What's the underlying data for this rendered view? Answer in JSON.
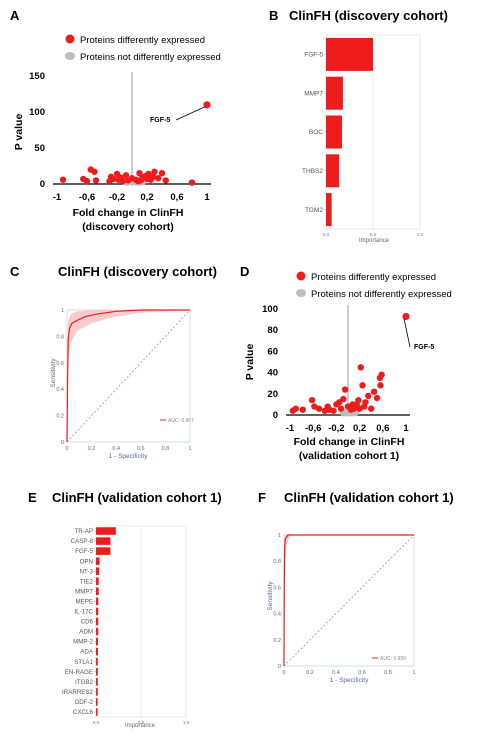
{
  "panels": {
    "A": {
      "letter": "A",
      "legend": [
        "Proteins differently expressed",
        "Proteins not differently expressed"
      ],
      "ylabel": "P value",
      "xlabel": "Fold change in ClinFH",
      "xlabel2": "(discovery cohort)",
      "annotation": "FGF-5"
    },
    "B": {
      "letter": "B",
      "title": "ClinFH (discovery cohort)",
      "xlabel": "Importance"
    },
    "C": {
      "letter": "C",
      "title": "ClinFH (discovery cohort)",
      "ylabel": "Sensitivity",
      "xlabel": "1 - Specificity",
      "legend": "AUC: 0.967"
    },
    "D": {
      "letter": "D",
      "legend": [
        "Proteins differently expressed",
        "Proteins not differently expressed"
      ],
      "ylabel": "P value",
      "xlabel": "Fold change in ClinFH",
      "xlabel2": "(validation cohort 1)",
      "annotation": "FGF-5"
    },
    "E": {
      "letter": "E",
      "title": "ClinFH (validation cohort 1)",
      "xlabel": "Importance"
    },
    "F": {
      "letter": "F",
      "title": "ClinFH (validation cohort 1)",
      "ylabel": "Sensitivity",
      "xlabel": "1 - Specificity",
      "legend": "AUC: 0.999"
    }
  },
  "colors": {
    "red": "#ee1c1c",
    "grey": "#bdbdbd",
    "grid": "#e3e3e3"
  },
  "chart_data": [
    {
      "panel": "A",
      "type": "scatter",
      "xlabel": "Fold change in ClinFH (discovery cohort)",
      "ylabel": "P value",
      "xlim": [
        -1,
        1
      ],
      "ylim": [
        0,
        150
      ],
      "xticks": [
        "-1",
        "-0,6",
        "-0,2",
        "0,2",
        "0,6",
        "1"
      ],
      "yticks": [
        "0",
        "50",
        "100",
        "150"
      ],
      "series": [
        {
          "name": "Proteins differently expressed",
          "points": [
            [
              -0.92,
              6
            ],
            [
              -0.65,
              7
            ],
            [
              -0.6,
              4
            ],
            [
              -0.55,
              20
            ],
            [
              -0.5,
              17
            ],
            [
              -0.48,
              5
            ],
            [
              -0.3,
              4
            ],
            [
              -0.28,
              10
            ],
            [
              -0.25,
              7
            ],
            [
              -0.2,
              14
            ],
            [
              -0.18,
              6
            ],
            [
              -0.15,
              9
            ],
            [
              -0.12,
              4
            ],
            [
              -0.08,
              12
            ],
            [
              -0.05,
              5
            ],
            [
              0.0,
              8
            ],
            [
              0.05,
              6
            ],
            [
              0.08,
              4
            ],
            [
              0.1,
              15
            ],
            [
              0.12,
              5
            ],
            [
              0.14,
              9
            ],
            [
              0.18,
              11
            ],
            [
              0.2,
              7
            ],
            [
              0.22,
              14
            ],
            [
              0.25,
              6
            ],
            [
              0.28,
              10
            ],
            [
              0.3,
              17
            ],
            [
              0.35,
              8
            ],
            [
              0.4,
              15
            ],
            [
              0.45,
              5
            ],
            [
              0.8,
              2
            ],
            [
              1.0,
              110
            ]
          ]
        },
        {
          "name": "Proteins not differently expressed",
          "points": [
            [
              -0.05,
              1
            ],
            [
              -0.02,
              2
            ],
            [
              0.0,
              1
            ],
            [
              0.02,
              2
            ],
            [
              0.05,
              1
            ],
            [
              0.08,
              1
            ],
            [
              0.1,
              2
            ],
            [
              0.12,
              1
            ],
            [
              -0.08,
              1
            ],
            [
              0.15,
              2
            ],
            [
              -0.1,
              2
            ],
            [
              0.03,
              3
            ]
          ]
        }
      ]
    },
    {
      "panel": "B",
      "type": "bar",
      "orientation": "horizontal",
      "categories": [
        "FGF-5",
        "MMP7",
        "BOC",
        "THBS2",
        "TGM2"
      ],
      "values": [
        0.5,
        0.18,
        0.17,
        0.14,
        0.06
      ],
      "xlim": [
        0,
        1.0
      ],
      "xticks": [
        "0.0",
        "0.5",
        "1.0"
      ],
      "xlabel": "Importance"
    },
    {
      "panel": "C",
      "type": "line",
      "title": "ClinFH (discovery cohort)",
      "xlabel": "1 - Specificity",
      "ylabel": "Sensitivity",
      "xlim": [
        0,
        1
      ],
      "ylim": [
        0,
        1
      ],
      "xticks": [
        "0",
        "0.2",
        "0.4",
        "0.6",
        "0.8",
        "1"
      ],
      "yticks": [
        "0",
        "0.2",
        "0.4",
        "0.6",
        "0.8",
        "1"
      ],
      "series": [
        {
          "name": "AUC: 0.967",
          "points": [
            [
              0,
              0
            ],
            [
              0.005,
              0.5
            ],
            [
              0.01,
              0.78
            ],
            [
              0.02,
              0.86
            ],
            [
              0.04,
              0.9
            ],
            [
              0.08,
              0.92
            ],
            [
              0.15,
              0.95
            ],
            [
              0.25,
              0.97
            ],
            [
              0.4,
              0.99
            ],
            [
              0.6,
              1
            ],
            [
              1,
              1
            ]
          ],
          "band_upper": [
            [
              0,
              0.3
            ],
            [
              0.005,
              0.8
            ],
            [
              0.01,
              0.92
            ],
            [
              0.03,
              0.97
            ],
            [
              0.08,
              0.99
            ],
            [
              0.2,
              1
            ],
            [
              1,
              1
            ]
          ],
          "band_lower": [
            [
              0,
              0
            ],
            [
              0.01,
              0.6
            ],
            [
              0.03,
              0.75
            ],
            [
              0.08,
              0.84
            ],
            [
              0.2,
              0.9
            ],
            [
              0.35,
              0.94
            ],
            [
              0.6,
              0.98
            ],
            [
              1,
              1
            ]
          ]
        }
      ]
    },
    {
      "panel": "D",
      "type": "scatter",
      "xlabel": "Fold change in ClinFH (validation cohort 1)",
      "ylabel": "P value",
      "xlim": [
        -1,
        1
      ],
      "ylim": [
        0,
        100
      ],
      "xticks": [
        "-1",
        "-0,6",
        "-0,2",
        "0,2",
        "0,6",
        "1"
      ],
      "yticks": [
        "0",
        "20",
        "40",
        "60",
        "80",
        "100"
      ],
      "series": [
        {
          "name": "Proteins differently expressed",
          "points": [
            [
              -0.95,
              4
            ],
            [
              -0.9,
              6
            ],
            [
              -0.78,
              5
            ],
            [
              -0.62,
              14
            ],
            [
              -0.58,
              8
            ],
            [
              -0.5,
              6
            ],
            [
              -0.4,
              4
            ],
            [
              -0.35,
              8
            ],
            [
              -0.32,
              5
            ],
            [
              -0.25,
              4
            ],
            [
              -0.2,
              10
            ],
            [
              -0.15,
              12
            ],
            [
              -0.12,
              6
            ],
            [
              -0.08,
              15
            ],
            [
              -0.05,
              24
            ],
            [
              0.0,
              8
            ],
            [
              0.05,
              5
            ],
            [
              0.08,
              10
            ],
            [
              0.1,
              6
            ],
            [
              0.15,
              10
            ],
            [
              0.18,
              14
            ],
            [
              0.2,
              6
            ],
            [
              0.22,
              45
            ],
            [
              0.25,
              28
            ],
            [
              0.28,
              8
            ],
            [
              0.3,
              12
            ],
            [
              0.35,
              18
            ],
            [
              0.4,
              6
            ],
            [
              0.45,
              22
            ],
            [
              0.5,
              16
            ],
            [
              0.55,
              35
            ],
            [
              0.56,
              28
            ],
            [
              0.58,
              38
            ],
            [
              1.0,
              93
            ]
          ]
        },
        {
          "name": "Proteins not differently expressed",
          "points": [
            [
              -0.05,
              1
            ],
            [
              -0.02,
              2
            ],
            [
              0.0,
              1
            ],
            [
              0.02,
              2
            ],
            [
              0.05,
              1
            ],
            [
              0.08,
              1
            ],
            [
              0.1,
              2
            ],
            [
              0.12,
              1
            ],
            [
              -0.08,
              1
            ],
            [
              0.15,
              2
            ],
            [
              -0.1,
              2
            ],
            [
              0.03,
              3
            ]
          ]
        }
      ]
    },
    {
      "panel": "E",
      "type": "bar",
      "orientation": "horizontal",
      "categories": [
        "TR-AP",
        "CASP-8",
        "FGF-5",
        "OPN",
        "NT-3",
        "TIE2",
        "MMP7",
        "MEPE",
        "IL-17C",
        "CD6",
        "ADM",
        "MMP-2",
        "ADA",
        "ST1A1",
        "EN-RAGE",
        "ITGB2",
        "IRARRES2",
        "GDF-2",
        "CXCL6"
      ],
      "values": [
        0.22,
        0.16,
        0.16,
        0.04,
        0.035,
        0.03,
        0.03,
        0.025,
        0.025,
        0.025,
        0.025,
        0.022,
        0.022,
        0.02,
        0.02,
        0.02,
        0.02,
        0.018,
        0.018
      ],
      "xlim": [
        0,
        1.0
      ],
      "xticks": [
        "0.0",
        "0.5",
        "1.0"
      ],
      "xlabel": "Importance"
    },
    {
      "panel": "F",
      "type": "line",
      "title": "ClinFH (validation cohort 1)",
      "xlabel": "1 - Specificity",
      "ylabel": "Sensitivity",
      "xlim": [
        0,
        1
      ],
      "ylim": [
        0,
        1
      ],
      "xticks": [
        "0",
        "0.2",
        "0.4",
        "0.6",
        "0.8",
        "1"
      ],
      "yticks": [
        "0",
        "0.2",
        "0.4",
        "0.6",
        "0.8",
        "1"
      ],
      "series": [
        {
          "name": "AUC: 0.999",
          "points": [
            [
              0,
              0
            ],
            [
              0.002,
              0.6
            ],
            [
              0.005,
              0.9
            ],
            [
              0.01,
              0.97
            ],
            [
              0.03,
              1
            ],
            [
              1,
              1
            ]
          ],
          "band_upper": [
            [
              0,
              0.4
            ],
            [
              0.005,
              0.95
            ],
            [
              0.01,
              1
            ],
            [
              1,
              1
            ]
          ],
          "band_lower": [
            [
              0,
              0
            ],
            [
              0.01,
              0.8
            ],
            [
              0.02,
              0.92
            ],
            [
              0.04,
              0.98
            ],
            [
              0.06,
              1
            ],
            [
              1,
              1
            ]
          ]
        }
      ]
    }
  ]
}
